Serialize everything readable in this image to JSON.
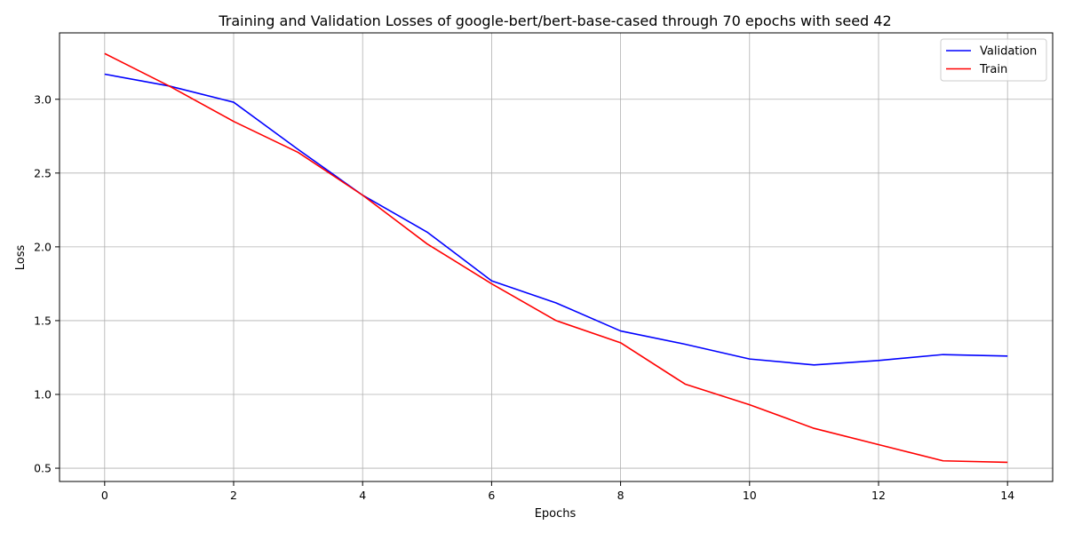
{
  "chart_data": {
    "type": "line",
    "title": "Training and Validation Losses of google-bert/bert-base-cased through 70 epochs with seed 42",
    "xlabel": "Epochs",
    "ylabel": "Loss",
    "xlim": [
      -0.7,
      14.7
    ],
    "ylim": [
      0.41,
      3.45
    ],
    "xticks": [
      0,
      2,
      4,
      6,
      8,
      10,
      12,
      14
    ],
    "yticks": [
      0.5,
      1.0,
      1.5,
      2.0,
      2.5,
      3.0
    ],
    "ytick_labels": [
      "0.5",
      "1.0",
      "1.5",
      "2.0",
      "2.5",
      "3.0"
    ],
    "grid": true,
    "legend_position": "top-right",
    "x": [
      0,
      1,
      2,
      3,
      4,
      5,
      6,
      7,
      8,
      9,
      10,
      11,
      12,
      13,
      14
    ],
    "series": [
      {
        "name": "Validation",
        "color": "#0000ff",
        "values": [
          3.17,
          3.09,
          2.98,
          2.66,
          2.35,
          2.1,
          1.77,
          1.62,
          1.43,
          1.34,
          1.24,
          1.2,
          1.23,
          1.27,
          1.26
        ]
      },
      {
        "name": "Train",
        "color": "#ff0000",
        "values": [
          3.31,
          3.09,
          2.85,
          2.64,
          2.35,
          2.02,
          1.75,
          1.5,
          1.35,
          1.07,
          0.93,
          0.77,
          0.66,
          0.55,
          0.54
        ]
      }
    ]
  }
}
